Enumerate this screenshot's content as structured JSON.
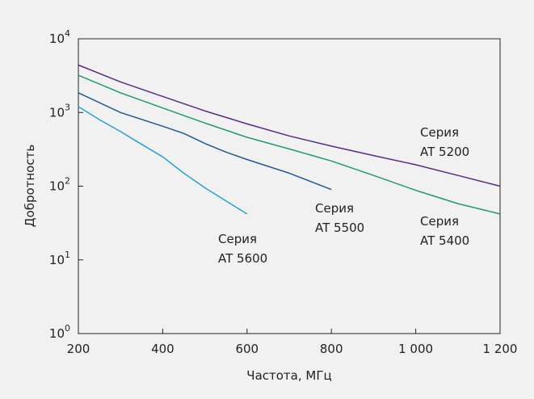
{
  "chart_data": {
    "type": "line",
    "xlabel": "Частота, МГц",
    "ylabel": "Добротность",
    "xlim": [
      200,
      1200
    ],
    "ylim": [
      1,
      10000
    ],
    "yscale": "log",
    "grid": false,
    "x_ticks": [
      200,
      400,
      600,
      800,
      1000,
      1200
    ],
    "x_tick_labels": [
      "200",
      "400",
      "600",
      "800",
      "1 000",
      "1 200"
    ],
    "y_ticks": [
      1,
      10,
      100,
      1000,
      10000
    ],
    "y_tick_labels": [
      {
        "base": "10",
        "exp": "0"
      },
      {
        "base": "10",
        "exp": "1"
      },
      {
        "base": "10",
        "exp": "2"
      },
      {
        "base": "10",
        "exp": "3"
      },
      {
        "base": "10",
        "exp": "4"
      }
    ],
    "series": [
      {
        "label_line1": "Серия",
        "label_line2": "AT 5200",
        "color": "#5b2a86",
        "x": [
          200,
          300,
          400,
          500,
          600,
          700,
          800,
          900,
          1000,
          1100,
          1200
        ],
        "y": [
          4400,
          2600,
          1650,
          1050,
          700,
          480,
          350,
          260,
          195,
          140,
          100
        ]
      },
      {
        "label_line1": "Серия",
        "label_line2": "AT 5400",
        "color": "#1f9a76",
        "x": [
          200,
          300,
          400,
          500,
          600,
          700,
          800,
          900,
          1000,
          1100,
          1200
        ],
        "y": [
          3200,
          1850,
          1150,
          720,
          460,
          320,
          220,
          140,
          88,
          58,
          42
        ]
      },
      {
        "label_line1": "Серия",
        "label_line2": "AT 5500",
        "color": "#1d5a96",
        "x": [
          200,
          300,
          400,
          450,
          500,
          550,
          600,
          700,
          800
        ],
        "y": [
          1850,
          1000,
          650,
          520,
          380,
          290,
          230,
          150,
          90
        ]
      },
      {
        "label_line1": "Серия",
        "label_line2": "AT 5600",
        "color": "#2a9fd6",
        "x": [
          200,
          250,
          300,
          350,
          400,
          450,
          500,
          550,
          600
        ],
        "y": [
          1200,
          800,
          550,
          370,
          250,
          150,
          95,
          63,
          42
        ]
      }
    ]
  }
}
